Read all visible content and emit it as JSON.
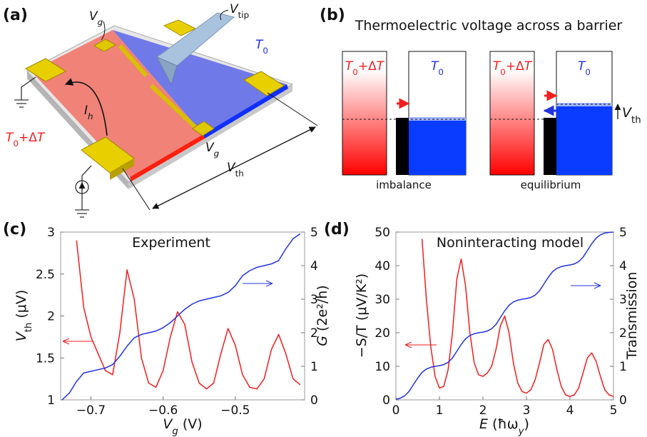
{
  "panel_labels": [
    "(a)",
    "(b)",
    "(c)",
    "(d)"
  ],
  "diagram_a": {
    "gate_top": [
      {
        "t": "V",
        "it": true
      },
      {
        "t": "g",
        "it": true,
        "sub": true
      }
    ],
    "tip": [
      {
        "t": "V",
        "it": true
      },
      {
        "t": "tip",
        "sub": true
      }
    ],
    "cold": [
      {
        "t": "T",
        "it": true
      },
      {
        "t": "0",
        "sub": true
      }
    ],
    "heater_current": [
      {
        "t": "I",
        "it": true
      },
      {
        "t": "h",
        "it": true,
        "sub": true
      }
    ],
    "hot": [
      {
        "t": "T",
        "it": true
      },
      {
        "t": "0",
        "sub": true
      },
      {
        "t": "+Δ"
      },
      {
        "t": "T",
        "it": true
      }
    ],
    "gate_bottom": [
      {
        "t": "V",
        "it": true
      },
      {
        "t": "g",
        "it": true,
        "sub": true
      }
    ],
    "voltage": [
      {
        "t": "V",
        "it": true
      },
      {
        "t": "th",
        "sub": true
      }
    ]
  },
  "diagram_b": {
    "title": "Thermoelectric voltage across a barrier",
    "states": [
      {
        "hot": [
          {
            "t": "T",
            "it": true
          },
          {
            "t": "0",
            "sub": true
          },
          {
            "t": "+Δ"
          },
          {
            "t": "T",
            "it": true
          }
        ],
        "cold": [
          {
            "t": "T",
            "it": true
          },
          {
            "t": "0",
            "sub": true
          }
        ],
        "caption": "imbalance"
      },
      {
        "hot": [
          {
            "t": "T",
            "it": true
          },
          {
            "t": "0",
            "sub": true
          },
          {
            "t": "+Δ"
          },
          {
            "t": "T",
            "it": true
          }
        ],
        "cold": [
          {
            "t": "T",
            "it": true
          },
          {
            "t": "0",
            "sub": true
          }
        ],
        "caption": "equilibrium",
        "voltage": [
          {
            "t": "V",
            "it": true
          },
          {
            "t": "th",
            "sub": true
          }
        ]
      }
    ]
  },
  "chart_data": [
    {
      "type": "line",
      "title": "Experiment",
      "xlabel": [
        {
          "t": "V",
          "it": true
        },
        {
          "t": "g",
          "it": true,
          "sub": true
        },
        {
          "t": " (V)"
        }
      ],
      "ylabel": [
        {
          "t": "V",
          "it": true
        },
        {
          "t": "th",
          "sub": true
        },
        {
          "t": " (μV)"
        }
      ],
      "y2label": [
        {
          "t": "G",
          "it": true
        },
        {
          "t": " (2e²/h)"
        }
      ],
      "xlim": [
        -0.742,
        -0.404
      ],
      "xticks": [
        {
          "value": -0.7,
          "label": "−0.7"
        },
        {
          "value": -0.6,
          "label": "−0.6"
        },
        {
          "value": -0.5,
          "label": "−0.5"
        }
      ],
      "ylim": [
        1,
        3
      ],
      "yticks": [
        1,
        1.5,
        2,
        2.5,
        3
      ],
      "y2lim": [
        0,
        5
      ],
      "y2ticks": [
        0,
        1,
        2,
        3,
        4,
        5
      ],
      "x": [
        -0.74,
        -0.73,
        -0.72,
        -0.71,
        -0.7,
        -0.69,
        -0.68,
        -0.67,
        -0.66,
        -0.65,
        -0.64,
        -0.63,
        -0.62,
        -0.61,
        -0.6,
        -0.59,
        -0.58,
        -0.57,
        -0.56,
        -0.55,
        -0.54,
        -0.53,
        -0.52,
        -0.51,
        -0.5,
        -0.49,
        -0.48,
        -0.47,
        -0.46,
        -0.45,
        -0.44,
        -0.43,
        -0.42,
        -0.41
      ],
      "series": [
        {
          "color": "#f01e1e",
          "values": [
            null,
            null,
            2.9,
            2.1,
            1.75,
            1.55,
            1.35,
            1.3,
            1.8,
            2.55,
            2.2,
            1.5,
            1.2,
            1.15,
            1.35,
            1.75,
            2.05,
            1.9,
            1.45,
            1.2,
            1.13,
            1.2,
            1.55,
            1.85,
            1.65,
            1.3,
            1.15,
            1.13,
            1.25,
            1.6,
            1.78,
            1.55,
            1.25,
            1.18
          ]
        },
        {
          "color": "#2233e0",
          "axis": "y2",
          "values": [
            0,
            0.2,
            0.55,
            0.8,
            0.85,
            0.9,
            0.95,
            1.05,
            1.3,
            1.6,
            1.85,
            1.95,
            2.0,
            2.05,
            2.15,
            2.3,
            2.5,
            2.7,
            2.85,
            2.95,
            3.0,
            3.05,
            3.1,
            3.2,
            3.4,
            3.7,
            3.85,
            3.95,
            4.0,
            4.05,
            4.15,
            4.5,
            4.8,
            4.95
          ]
        }
      ]
    },
    {
      "type": "line",
      "title": "Noninteracting model",
      "xlabel": [
        {
          "t": "E",
          "it": true
        },
        {
          "t": " (ħω"
        },
        {
          "t": "y",
          "it": true,
          "sub": true
        },
        {
          "t": ")"
        }
      ],
      "ylabel": "−S/T (μV/K²)",
      "y2label": "Transmission",
      "xlim": [
        0,
        5
      ],
      "xticks": [
        0,
        1,
        2,
        3,
        4,
        5
      ],
      "ylim": [
        0,
        50
      ],
      "yticks": [
        0,
        10,
        20,
        30,
        40,
        50
      ],
      "y2lim": [
        0,
        5
      ],
      "y2ticks": [
        0,
        1,
        2,
        3,
        4,
        5
      ],
      "x": [
        0,
        0.1,
        0.2,
        0.3,
        0.4,
        0.5,
        0.6,
        0.7,
        0.8,
        0.9,
        1.0,
        1.1,
        1.2,
        1.3,
        1.4,
        1.5,
        1.6,
        1.7,
        1.8,
        1.9,
        2.0,
        2.1,
        2.2,
        2.3,
        2.4,
        2.5,
        2.6,
        2.7,
        2.8,
        2.9,
        3.0,
        3.1,
        3.2,
        3.3,
        3.4,
        3.5,
        3.6,
        3.7,
        3.8,
        3.9,
        4.0,
        4.1,
        4.2,
        4.3,
        4.4,
        4.5,
        4.6,
        4.7,
        4.8,
        4.9,
        5.0
      ],
      "series": [
        {
          "color": "#f01e1e",
          "values": [
            null,
            null,
            null,
            null,
            null,
            null,
            48,
            30,
            16,
            7,
            3.5,
            4,
            9,
            20,
            36,
            42,
            34,
            20,
            11,
            7.5,
            7,
            8,
            10,
            15,
            22,
            25,
            20,
            11,
            5,
            2.5,
            2,
            3,
            6,
            11,
            16.5,
            18,
            15,
            9,
            4,
            1.5,
            1,
            1.5,
            3.5,
            8,
            12.5,
            14,
            11.5,
            7,
            3,
            1.5,
            1
          ]
        },
        {
          "color": "#2233e0",
          "axis": "y2",
          "values": [
            0.02,
            0.05,
            0.12,
            0.25,
            0.45,
            0.65,
            0.82,
            0.92,
            0.97,
            1.0,
            1.02,
            1.05,
            1.12,
            1.25,
            1.45,
            1.65,
            1.82,
            1.92,
            1.97,
            2.0,
            2.02,
            2.05,
            2.12,
            2.25,
            2.45,
            2.65,
            2.82,
            2.92,
            2.97,
            3.0,
            3.02,
            3.05,
            3.12,
            3.25,
            3.45,
            3.65,
            3.82,
            3.92,
            3.97,
            4.0,
            4.02,
            4.05,
            4.12,
            4.25,
            4.45,
            4.65,
            4.82,
            4.92,
            4.97,
            4.99,
            5.0
          ]
        }
      ]
    }
  ]
}
